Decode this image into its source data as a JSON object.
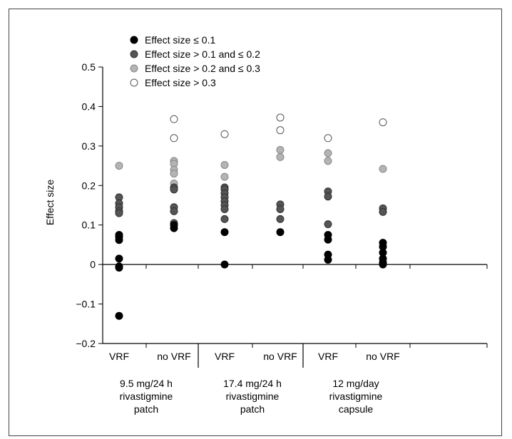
{
  "chart_data": {
    "type": "scatter",
    "ylabel": "Effect size",
    "ylim": [
      -0.2,
      0.5
    ],
    "y_ticks": [
      "−0.2",
      "−0.1",
      "0",
      "0.1",
      "0.2",
      "0.3",
      "0.4",
      "0.5"
    ],
    "y_tick_values": [
      -0.2,
      -0.1,
      0,
      0.1,
      0.2,
      0.3,
      0.4,
      0.5
    ],
    "grid": false,
    "legend_position": "top-left",
    "legend": [
      {
        "label": "Effect size ≤ 0.1",
        "color": "#000000"
      },
      {
        "label": "Effect size > 0.1 and ≤ 0.2",
        "color": "#555555"
      },
      {
        "label": "Effect size > 0.2 and ≤ 0.3",
        "color": "#b4b4b4"
      },
      {
        "label": "Effect size > 0.3",
        "color": "#ffffff"
      }
    ],
    "groups": [
      {
        "label_lines": [
          "9.5 mg/24 h",
          "rivastigmine",
          "patch"
        ]
      },
      {
        "label_lines": [
          "17.4 mg/24 h",
          "rivastigmine",
          "patch"
        ]
      },
      {
        "label_lines": [
          "12 mg/day",
          "rivastigmine",
          "capsule"
        ]
      }
    ],
    "categories": [
      "VRF",
      "no VRF",
      "VRF",
      "no VRF",
      "VRF",
      "no VRF"
    ],
    "values": [
      [
        0.25,
        0.17,
        0.155,
        0.145,
        0.135,
        0.13,
        0.075,
        0.07,
        0.062,
        0.015,
        -0.005,
        -0.008,
        -0.13
      ],
      [
        0.368,
        0.32,
        0.262,
        0.255,
        0.24,
        0.23,
        0.205,
        0.195,
        0.19,
        0.145,
        0.135,
        0.105,
        0.1,
        0.092
      ],
      [
        0.33,
        0.252,
        0.222,
        0.195,
        0.19,
        0.18,
        0.17,
        0.16,
        0.15,
        0.14,
        0.115,
        0.082,
        0.0
      ],
      [
        0.372,
        0.34,
        0.29,
        0.272,
        0.152,
        0.14,
        0.115,
        0.082
      ],
      [
        0.32,
        0.282,
        0.262,
        0.185,
        0.172,
        0.102,
        0.075,
        0.063,
        0.025,
        0.012
      ],
      [
        0.36,
        0.242,
        0.142,
        0.133,
        0.055,
        0.045,
        0.03,
        0.015,
        0.005,
        0.0
      ]
    ]
  }
}
